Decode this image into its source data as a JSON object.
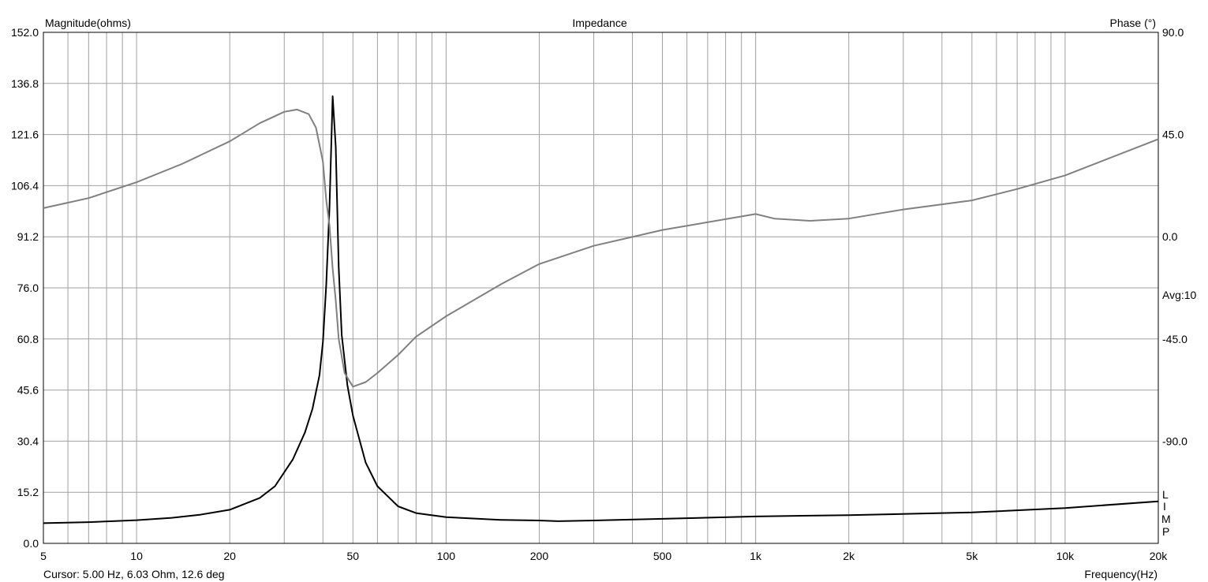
{
  "chart_data": {
    "type": "line",
    "title": "Impedance",
    "ylabel": "Magnitude(ohms)",
    "y2label": "Phase (°)",
    "xlabel": "Frequency(Hz)",
    "x_scale": "log",
    "xlim": [
      5,
      20000
    ],
    "ylim": [
      0,
      152
    ],
    "y2lim": [
      -135,
      90
    ],
    "grid": true,
    "y_ticks": [
      "0.0",
      "15.2",
      "30.4",
      "45.6",
      "60.8",
      "76.0",
      "91.2",
      "106.4",
      "121.6",
      "136.8",
      "152.0"
    ],
    "y2_ticks": [
      {
        "value": 90,
        "label": "90.0"
      },
      {
        "value": 45,
        "label": "45.0"
      },
      {
        "value": 0,
        "label": "0.0"
      },
      {
        "value": -45,
        "label": "-45.0"
      },
      {
        "value": -90,
        "label": "-90.0"
      }
    ],
    "x_ticks": [
      {
        "value": 5,
        "label": "5"
      },
      {
        "value": 10,
        "label": "10"
      },
      {
        "value": 20,
        "label": "20"
      },
      {
        "value": 50,
        "label": "50"
      },
      {
        "value": 100,
        "label": "100"
      },
      {
        "value": 200,
        "label": "200"
      },
      {
        "value": 500,
        "label": "500"
      },
      {
        "value": 1000,
        "label": "1k"
      },
      {
        "value": 2000,
        "label": "2k"
      },
      {
        "value": 5000,
        "label": "5k"
      },
      {
        "value": 10000,
        "label": "10k"
      },
      {
        "value": 20000,
        "label": "20k"
      }
    ],
    "annotations": {
      "avg": "Avg:10",
      "cursor": "Cursor: 5.00 Hz, 6.03 Ohm, 12.6 deg",
      "limp": [
        "L",
        "I",
        "M",
        "P"
      ]
    },
    "colors": {
      "magnitude": "#000000",
      "phase": "#808080",
      "grid": "#a0a0a0"
    },
    "series": [
      {
        "axis": "left",
        "x": [
          5,
          7,
          10,
          13,
          16,
          20,
          25,
          28,
          32,
          35,
          37,
          39,
          40,
          41,
          42,
          43,
          44,
          45,
          46,
          48,
          50,
          55,
          60,
          70,
          80,
          100,
          150,
          200,
          230,
          300,
          500,
          1000,
          2000,
          5000,
          10000,
          20000
        ],
        "values": [
          6.0,
          6.3,
          6.9,
          7.6,
          8.5,
          10,
          13.5,
          17,
          25,
          33,
          40,
          50,
          60,
          77,
          100,
          133,
          118,
          82,
          62,
          47,
          38,
          24,
          17,
          11,
          9,
          7.8,
          7.0,
          6.8,
          6.6,
          6.8,
          7.3,
          8.0,
          8.4,
          9.2,
          10.5,
          12.5
        ]
      },
      {
        "axis": "right",
        "x": [
          5,
          7,
          10,
          14,
          20,
          25,
          30,
          33,
          36,
          38,
          40,
          41,
          42,
          43,
          44,
          45,
          47,
          50,
          55,
          60,
          70,
          80,
          100,
          150,
          200,
          300,
          500,
          1000,
          1150,
          1500,
          2000,
          3000,
          5000,
          7000,
          10000,
          20000
        ],
        "values": [
          12.6,
          17,
          24,
          32,
          42,
          50,
          55,
          56,
          54,
          48,
          33,
          16,
          5,
          -14,
          -28,
          -45,
          -60,
          -66,
          -64,
          -60,
          -52,
          -44,
          -35,
          -21,
          -12,
          -4,
          3,
          10,
          8,
          7,
          8,
          12,
          16,
          21,
          27,
          43
        ]
      }
    ]
  }
}
